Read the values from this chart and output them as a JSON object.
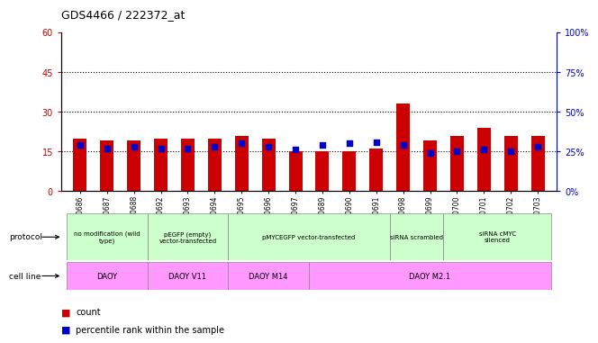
{
  "title": "GDS4466 / 222372_at",
  "samples": [
    "GSM550686",
    "GSM550687",
    "GSM550688",
    "GSM550692",
    "GSM550693",
    "GSM550694",
    "GSM550695",
    "GSM550696",
    "GSM550697",
    "GSM550689",
    "GSM550690",
    "GSM550691",
    "GSM550698",
    "GSM550699",
    "GSM550700",
    "GSM550701",
    "GSM550702",
    "GSM550703"
  ],
  "counts": [
    20,
    19,
    19,
    20,
    20,
    20,
    21,
    20,
    15,
    15,
    15,
    16,
    33,
    19,
    21,
    24,
    21,
    21
  ],
  "percentiles": [
    29,
    27,
    28,
    27,
    27,
    28,
    30,
    28,
    26,
    29,
    30,
    31,
    29,
    24,
    25,
    26,
    25,
    28
  ],
  "bar_color": "#cc0000",
  "dot_color": "#0000cc",
  "ylim_left": [
    0,
    60
  ],
  "ylim_right": [
    0,
    100
  ],
  "yticks_left": [
    0,
    15,
    30,
    45,
    60
  ],
  "yticks_right": [
    0,
    25,
    50,
    75,
    100
  ],
  "ytick_labels_right": [
    "0%",
    "25%",
    "50%",
    "75%",
    "100%"
  ],
  "hlines": [
    15,
    30,
    45
  ],
  "protocol_groups": [
    {
      "label": "no modification (wild\ntype)",
      "start": 0,
      "end": 3,
      "color": "#ccffcc"
    },
    {
      "label": "pEGFP (empty)\nvector-transfected",
      "start": 3,
      "end": 6,
      "color": "#ccffcc"
    },
    {
      "label": "pMYCEGFP vector-transfected",
      "start": 6,
      "end": 12,
      "color": "#ccffcc"
    },
    {
      "label": "siRNA scrambled",
      "start": 12,
      "end": 14,
      "color": "#ccffcc"
    },
    {
      "label": "siRNA cMYC\nsilenced",
      "start": 14,
      "end": 18,
      "color": "#ccffcc"
    }
  ],
  "cellline_groups": [
    {
      "label": "DAOY",
      "start": 0,
      "end": 3,
      "color": "#ff99ff"
    },
    {
      "label": "DAOY V11",
      "start": 3,
      "end": 6,
      "color": "#ff99ff"
    },
    {
      "label": "DAOY M14",
      "start": 6,
      "end": 9,
      "color": "#ff99ff"
    },
    {
      "label": "DAOY M2.1",
      "start": 9,
      "end": 18,
      "color": "#ff99ff"
    }
  ],
  "legend_items": [
    {
      "label": "count",
      "color": "#cc0000"
    },
    {
      "label": "percentile rank within the sample",
      "color": "#0000cc"
    }
  ],
  "bg_color": "#ffffff",
  "plot_bg": "#ffffff",
  "axis_color_left": "#cc0000",
  "axis_color_right": "#0000cc",
  "grid_color": "#e8e8e8"
}
